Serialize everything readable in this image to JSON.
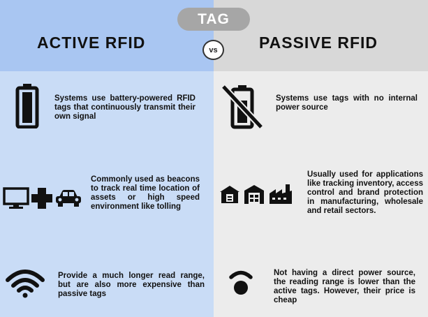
{
  "tag_label": "TAG",
  "vs_label": "vs",
  "active": {
    "title": "ACTIVE RFID",
    "power": "Systems use battery-powered RFID tags that continuously transmit their own signal",
    "uses": "Commonly used as beacons to track real time location of assets or high speed environment like tolling",
    "range": "Provide a much longer read range, but are also more expensive than passive tags"
  },
  "passive": {
    "title": "PASSIVE RFID",
    "power": "Systems use tags with no internal power source",
    "uses": "Usually used for applications like tracking inventory, access control and brand protection in manufacturing, wholesale and retail sectors.",
    "range": "Not having a direct power source, the reading range is lower than the active tags. However, their price is cheap"
  },
  "colors": {
    "active_panel": "#c9dcf6",
    "active_header": "#a9c6f2",
    "passive_panel": "#ececec",
    "passive_header": "#d8d8d8",
    "tag_pill": "#a6a6a6"
  },
  "icons": [
    "battery-icon",
    "no-battery-icon",
    "monitor-icon",
    "medical-cross-icon",
    "car-icon",
    "bank-icon",
    "warehouse-icon",
    "factory-icon",
    "wifi-full-icon",
    "wifi-weak-icon"
  ]
}
